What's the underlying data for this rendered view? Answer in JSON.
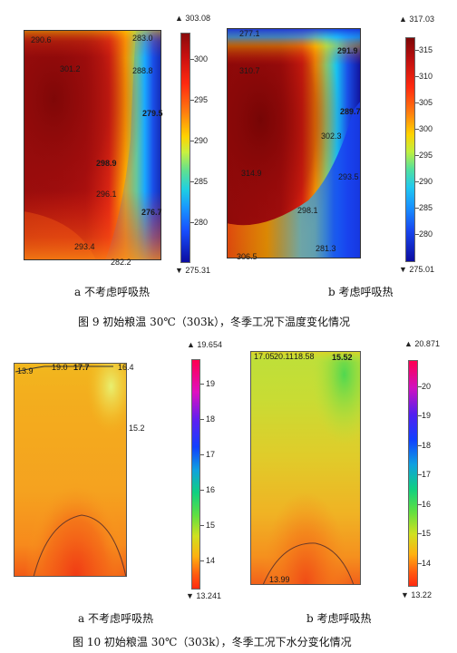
{
  "fig9": {
    "panel_a": {
      "labels": [
        "290.6",
        "283.0",
        "301.2",
        "288.8",
        "279.5",
        "298.9",
        "296.1",
        "276.7",
        "293.4",
        "282.2"
      ],
      "colorbar": {
        "max": "303.08",
        "min": "275.31",
        "ticks": [
          "300",
          "295",
          "290",
          "285",
          "280"
        ]
      },
      "sublabel": "a 不考虑呼吸热"
    },
    "panel_b": {
      "labels": [
        "277.1",
        "291.9",
        "310.7",
        "289.7",
        "302.3",
        "314.9",
        "293.5",
        "298.1",
        "306.5",
        "281.3"
      ],
      "colorbar": {
        "max": "317.03",
        "min": "275.01",
        "ticks": [
          "315",
          "310",
          "305",
          "300",
          "295",
          "290",
          "285",
          "280"
        ]
      },
      "sublabel": "b 考虑呼吸热"
    },
    "caption": "图 9 初始粮温 30℃（303k），冬季工况下温度变化情况"
  },
  "fig10": {
    "panel_a": {
      "labels": [
        "13.9",
        "19.0",
        "17.7",
        "16.4",
        "15.2"
      ],
      "colorbar": {
        "max": "19.654",
        "min": "13.241",
        "ticks": [
          "19",
          "18",
          "17",
          "16",
          "15",
          "14"
        ]
      },
      "sublabel": "a 不考虑呼吸热"
    },
    "panel_b": {
      "labels": [
        "17.05",
        "20.11",
        "18.58",
        "15.52",
        "13.99"
      ],
      "colorbar": {
        "max": "20.871",
        "min": "13.22",
        "ticks": [
          "20",
          "19",
          "18",
          "17",
          "16",
          "15",
          "14"
        ]
      },
      "sublabel": "b 考虑呼吸热"
    },
    "caption": "图 10 初始粮温 30℃（303k），冬季工况下水分变化情况"
  },
  "colors": {
    "temp_hot": "#8b0a0a",
    "temp_cold": "#1010a0",
    "moist_orange": "#f5a623",
    "moist_green": "#a8d83a"
  }
}
